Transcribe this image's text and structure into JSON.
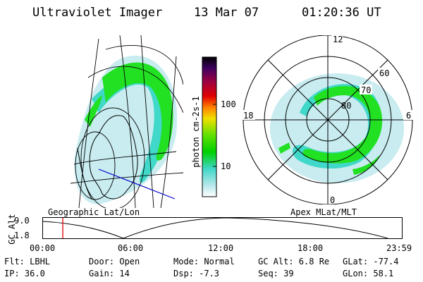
{
  "header": {
    "instrument": "Ultraviolet Imager",
    "date": "13 Mar 07",
    "time": "01:20:36 UT"
  },
  "colorbar": {
    "title": "photon cm-2s-1",
    "ticks": [
      "100",
      "10"
    ]
  },
  "polar_plot": {
    "mlt_labels": [
      "12",
      "18",
      "6",
      "0"
    ],
    "lat_labels": [
      "60",
      "70",
      "80"
    ]
  },
  "panel_labels": {
    "geo": "Geographic Lat/Lon",
    "apex": "Apex MLat/MLT"
  },
  "orbit_plot": {
    "ylabel": "GC Alt",
    "y_ticks": [
      "9.0",
      "1.8"
    ],
    "x_ticks": [
      "00:00",
      "06:00",
      "12:00",
      "18:00",
      "23:59"
    ],
    "marker_hours": 1.343
  },
  "status": {
    "flt": "Flt: LBHL",
    "ip": "IP: 36.0",
    "door": "Door: Open",
    "gain": "Gain: 14",
    "mode": "Mode: Normal",
    "dsp": "Dsp:   -7.3",
    "gcalt": "GC Alt: 6.8 Re",
    "seq": "Seq: 39",
    "glat": "GLat: -77.4",
    "glon": "GLon:  58.1"
  },
  "colors": {
    "aurora_bright": "#22e022",
    "aurora_mid": "#40d8c8",
    "aurora_faint": "#bfe8ec",
    "marker": "#e00000",
    "track": "#0000cc"
  }
}
